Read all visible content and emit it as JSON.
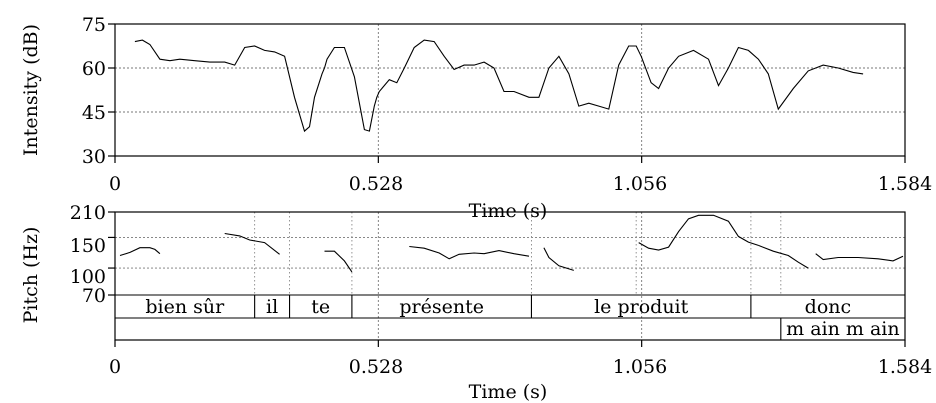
{
  "chart_data": [
    {
      "type": "line",
      "title": "",
      "xlabel": "Time (s)",
      "ylabel": "Intensity (dB)",
      "xlim": [
        0,
        1.584
      ],
      "ylim": [
        30,
        75
      ],
      "xticks": [
        "0",
        "0.528",
        "1.056",
        "1.584"
      ],
      "yticks": [
        "30",
        "45",
        "60",
        "75"
      ],
      "grid": true,
      "series": [
        {
          "x": [
            0.04,
            0.055,
            0.07,
            0.09,
            0.11,
            0.13,
            0.16,
            0.19,
            0.22,
            0.24,
            0.26,
            0.28,
            0.3,
            0.32,
            0.34,
            0.36,
            0.38,
            0.39,
            0.4,
            0.415,
            0.42,
            0.425,
            0.44,
            0.46,
            0.48,
            0.5,
            0.51,
            0.52,
            0.525,
            0.53,
            0.55,
            0.565,
            0.58,
            0.6,
            0.62,
            0.64,
            0.66,
            0.68,
            0.7,
            0.72,
            0.74,
            0.76,
            0.78,
            0.8,
            0.83,
            0.85,
            0.87,
            0.89,
            0.91,
            0.93,
            0.95,
            0.97,
            0.99,
            1.01,
            1.03,
            1.045,
            1.055,
            1.075,
            1.09,
            1.11,
            1.13,
            1.16,
            1.19,
            1.21,
            1.23,
            1.25,
            1.27,
            1.29,
            1.31,
            1.33,
            1.36,
            1.39,
            1.42,
            1.45,
            1.48,
            1.5
          ],
          "values": [
            69,
            69.5,
            68,
            63,
            62.5,
            63,
            62.5,
            62,
            62,
            61,
            67,
            67.5,
            66,
            65.5,
            64,
            50,
            38.5,
            40,
            50,
            58,
            60,
            63,
            67,
            67,
            57,
            39,
            38.5,
            47,
            50,
            52,
            56,
            55,
            60,
            67,
            69.5,
            69,
            64,
            59.5,
            61,
            61,
            62,
            60,
            52,
            52,
            50,
            50,
            60,
            64,
            58,
            47,
            48,
            47,
            46,
            61,
            67.5,
            67.5,
            64,
            55,
            53,
            60,
            64,
            66,
            63,
            54,
            60,
            67,
            66,
            63,
            58,
            46,
            53,
            59,
            61,
            60,
            58.5,
            58
          ]
        }
      ]
    },
    {
      "type": "line",
      "title": "",
      "xlabel": "Time (s)",
      "ylabel": "Pitch (Hz)",
      "xlim": [
        0,
        1.584
      ],
      "ylim": [
        70,
        210
      ],
      "scale": "log",
      "xticks": [
        "0",
        "0.528",
        "1.056",
        "1.584"
      ],
      "yticks": [
        "70",
        "100",
        "150",
        "210"
      ],
      "grid": true,
      "series": [
        {
          "segments": [
            {
              "x": [
                0.01,
                0.03,
                0.05,
                0.07,
                0.08,
                0.09
              ],
              "values": [
                118,
                123,
                131,
                131,
                128,
                121
              ]
            },
            {
              "x": [
                0.22,
                0.25,
                0.27,
                0.3,
                0.33
              ],
              "values": [
                158,
                153,
                145,
                140,
                120
              ]
            },
            {
              "x": [
                0.42,
                0.44,
                0.46,
                0.475
              ],
              "values": [
                125,
                125,
                110,
                95
              ]
            },
            {
              "x": [
                0.59,
                0.62,
                0.65,
                0.67,
                0.69,
                0.72,
                0.74,
                0.77,
                0.8,
                0.83
              ],
              "values": [
                133,
                130,
                122,
                113,
                120,
                122,
                121,
                126,
                121,
                117
              ]
            },
            {
              "x": [
                0.86,
                0.87,
                0.89,
                0.92
              ],
              "values": [
                131,
                115,
                103,
                97
              ]
            },
            {
              "x": [
                1.05,
                1.07,
                1.09,
                1.11,
                1.13,
                1.15,
                1.17,
                1.2,
                1.23,
                1.25,
                1.27,
                1.29
              ],
              "values": [
                140,
                130,
                127,
                132,
                162,
                192,
                201,
                201,
                186,
                152,
                141,
                135
              ]
            },
            {
              "x": [
                1.29,
                1.32,
                1.35,
                1.37,
                1.39
              ],
              "values": [
                135,
                125,
                118,
                108,
                100
              ]
            },
            {
              "x": [
                1.405,
                1.42,
                1.45,
                1.49,
                1.53,
                1.56,
                1.58
              ],
              "values": [
                121,
                112,
                115,
                115,
                113,
                110,
                117
              ]
            }
          ]
        }
      ],
      "tiers": [
        {
          "intervals": [
            {
              "start": 0,
              "end": 0.28,
              "label": "bien sûr"
            },
            {
              "start": 0.28,
              "end": 0.35,
              "label": "il"
            },
            {
              "start": 0.35,
              "end": 0.475,
              "label": "te"
            },
            {
              "start": 0.475,
              "end": 0.835,
              "label": "présente"
            },
            {
              "start": 0.835,
              "end": 1.275,
              "label": "le produit"
            },
            {
              "start": 1.275,
              "end": 1.584,
              "label": "donc"
            }
          ]
        },
        {
          "intervals": [
            {
              "start": 1.335,
              "end": 1.584,
              "label": "m ain m ain"
            }
          ]
        }
      ],
      "boundary_times": [
        0.28,
        0.35,
        0.475,
        0.835,
        1.045,
        1.275,
        1.335
      ]
    }
  ]
}
